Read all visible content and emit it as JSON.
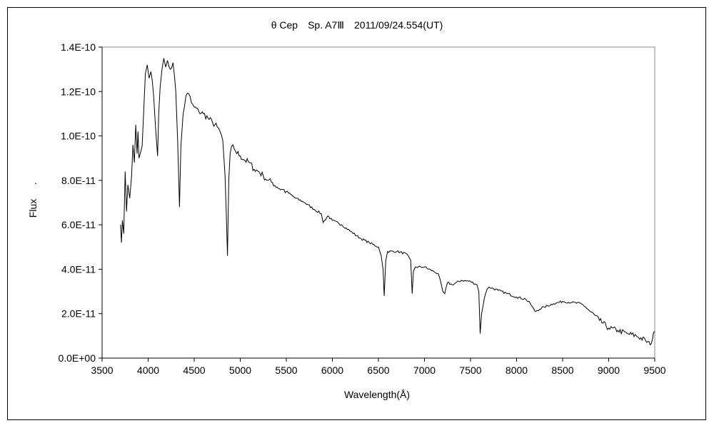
{
  "chart_data": {
    "type": "line",
    "title": "θ Cep　Sp. A7Ⅲ　2011/09/24.554(UT)",
    "xlabel": "Wavelength(Å)",
    "ylabel": "Flux",
    "ylabel_mark": ".",
    "xlim": [
      3500,
      9500
    ],
    "ylim": [
      0,
      1.4e-10
    ],
    "grid": false,
    "legend": "none",
    "x_ticks": [
      3500,
      4000,
      4500,
      5000,
      5500,
      6000,
      6500,
      7000,
      7500,
      8000,
      8500,
      9000,
      9500
    ],
    "x_tick_labels": [
      "3500",
      "4000",
      "4500",
      "5000",
      "5500",
      "6000",
      "6500",
      "7000",
      "7500",
      "8000",
      "8500",
      "9000",
      "9500"
    ],
    "y_ticks": [
      0,
      2e-11,
      4e-11,
      6e-11,
      8e-11,
      1e-10,
      1.2e-10,
      1.4e-10
    ],
    "y_tick_labels": [
      "0.0E+00",
      "2.0E-11",
      "4.0E-11",
      "6.0E-11",
      "8.0E-11",
      "1.0E-10",
      "1.2E-10",
      "1.4E-10"
    ],
    "series": [
      {
        "name": "Flux",
        "color": "#000000",
        "x": [
          3700,
          3710,
          3720,
          3735,
          3750,
          3765,
          3780,
          3800,
          3820,
          3835,
          3850,
          3865,
          3880,
          3890,
          3900,
          3920,
          3950,
          3970,
          3990,
          4010,
          4030,
          4060,
          4080,
          4102,
          4115,
          4130,
          4150,
          4170,
          4190,
          4210,
          4240,
          4270,
          4300,
          4320,
          4340,
          4355,
          4380,
          4410,
          4440,
          4470,
          4500,
          4550,
          4600,
          4650,
          4700,
          4750,
          4780,
          4810,
          4835,
          4861,
          4875,
          4890,
          4920,
          4950,
          5000,
          5050,
          5100,
          5150,
          5200,
          5250,
          5300,
          5350,
          5400,
          5450,
          5500,
          5600,
          5700,
          5800,
          5880,
          5900,
          5950,
          6000,
          6100,
          6200,
          6300,
          6400,
          6500,
          6530,
          6550,
          6563,
          6580,
          6600,
          6700,
          6800,
          6850,
          6867,
          6880,
          6900,
          7000,
          7100,
          7150,
          7200,
          7220,
          7250,
          7300,
          7400,
          7500,
          7570,
          7590,
          7605,
          7620,
          7650,
          7680,
          7700,
          7800,
          7900,
          8000,
          8100,
          8150,
          8200,
          8250,
          8300,
          8400,
          8500,
          8600,
          8700,
          8750,
          8800,
          8900,
          9000,
          9100,
          9200,
          9300,
          9400,
          9450,
          9500
        ],
        "y": [
          6e-11,
          5.2e-11,
          6.2e-11,
          5.6e-11,
          8.4e-11,
          6.6e-11,
          7.8e-11,
          7.2e-11,
          8.2e-11,
          9.6e-11,
          8.8e-11,
          1.05e-10,
          9.2e-11,
          1.02e-10,
          9e-11,
          9.3e-11,
          1.1e-10,
          1.28e-10,
          1.32e-10,
          1.26e-10,
          1.29e-10,
          1.18e-10,
          1.04e-10,
          9.1e-11,
          1.1e-10,
          1.22e-10,
          1.3e-10,
          1.35e-10,
          1.31e-10,
          1.34e-10,
          1.3e-10,
          1.33e-10,
          1.2e-10,
          9.8e-11,
          6.8e-11,
          9.5e-11,
          1.1e-10,
          1.18e-10,
          1.19e-10,
          1.15e-10,
          1.13e-10,
          1.11e-10,
          1.1e-10,
          1.08e-10,
          1.06e-10,
          1.04e-10,
          1.02e-10,
          9.8e-11,
          8.2e-11,
          4.6e-11,
          8e-11,
          9.2e-11,
          9.6e-11,
          9.3e-11,
          9.1e-11,
          8.9e-11,
          8.8e-11,
          8.5e-11,
          8.4e-11,
          8.2e-11,
          8e-11,
          7.9e-11,
          7.7e-11,
          7.6e-11,
          7.5e-11,
          7.2e-11,
          7e-11,
          6.7e-11,
          6.5e-11,
          6.1e-11,
          6.4e-11,
          6.2e-11,
          6e-11,
          5.7e-11,
          5.4e-11,
          5.2e-11,
          5e-11,
          4.6e-11,
          4e-11,
          2.8e-11,
          4.4e-11,
          4.8e-11,
          4.8e-11,
          4.7e-11,
          4.4e-11,
          2.9e-11,
          3.9e-11,
          4.1e-11,
          4.1e-11,
          3.9e-11,
          3.8e-11,
          3e-11,
          2.9e-11,
          3.4e-11,
          3.3e-11,
          3.5e-11,
          3.45e-11,
          3.3e-11,
          3e-11,
          1.1e-11,
          2e-11,
          2.7e-11,
          3.1e-11,
          3.2e-11,
          3.05e-11,
          2.9e-11,
          2.75e-11,
          2.65e-11,
          2.45e-11,
          2.1e-11,
          2.2e-11,
          2.3e-11,
          2.45e-11,
          2.55e-11,
          2.5e-11,
          2.45e-11,
          2.3e-11,
          2.1e-11,
          1.7e-11,
          1.35e-11,
          1.25e-11,
          1.1e-11,
          1e-11,
          8e-12,
          6e-12,
          1.2e-11
        ]
      }
    ]
  }
}
